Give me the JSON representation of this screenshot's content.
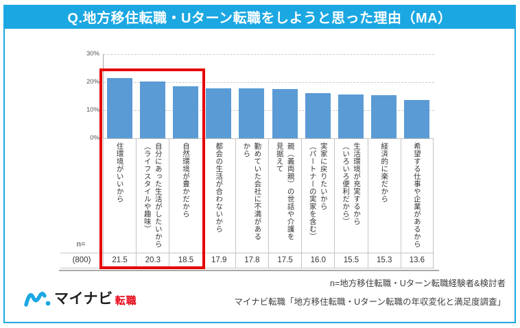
{
  "header": {
    "title": "Q.地方移住転職・Uターン転職をしようと思った理由（MA）"
  },
  "colors": {
    "accent": "#1BA7E2",
    "bar": "#5B9BD5",
    "highlight": "#E60000"
  },
  "chart_data": {
    "type": "bar",
    "title": "Q.地方移住転職・Uターン転職をしようと思った理由（MA）",
    "categories": [
      "住環境がいいから",
      "自分にあった生活がしたいから\n（ライフスタイルや趣味）",
      "自然環境が豊かだから",
      "都会の生活が合わないから",
      "勤めていた会社に不満がある\nから",
      "親（義両親）の世話や介護を\n見据えて",
      "実家に戻りたいから\n（パートナーの実家を含む）",
      "生活環境が充実するから\n（いろいろ便利だから）",
      "経済的に楽だから",
      "希望する仕事や企業があるから"
    ],
    "values": [
      21.5,
      20.3,
      18.5,
      17.9,
      17.8,
      17.5,
      16.0,
      15.5,
      15.3,
      13.6
    ],
    "xlabel": "",
    "ylabel": "",
    "ylim": [
      0,
      30
    ],
    "yticks": [
      "0%",
      "10%",
      "20%",
      "30%"
    ],
    "grid": true,
    "legend": "none",
    "n_label": "n=",
    "n_value": "(800)",
    "highlighted_columns": [
      0,
      1,
      2
    ]
  },
  "footer": {
    "logo_text": "マイナビ",
    "logo_suffix": "転職",
    "note_line1": "n=地方移住転職・Uターン転職経験者&検討者",
    "note_line2": "マイナビ転職「地方移住転職・Uターン転職の年収変化と満足度調査」"
  }
}
